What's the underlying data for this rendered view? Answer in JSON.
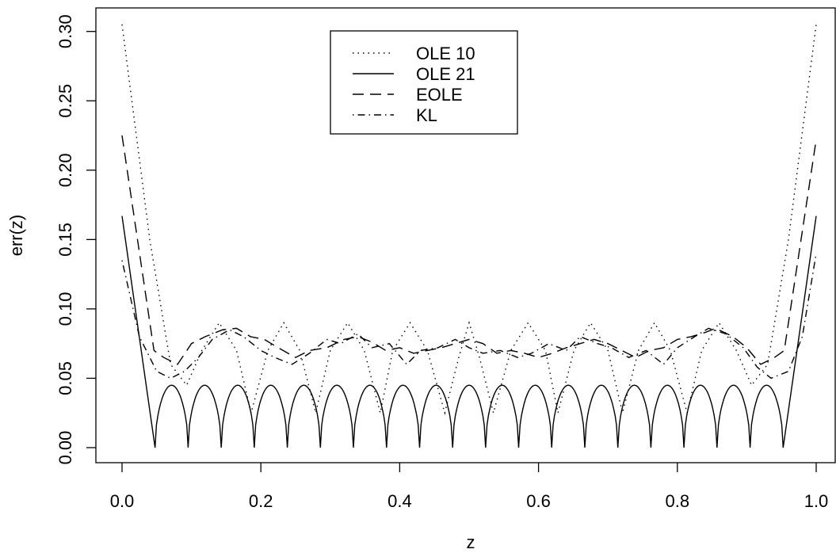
{
  "chart_data": {
    "type": "line",
    "title": "",
    "xlabel": "z",
    "ylabel": "err(z)",
    "xlim": [
      0.0,
      1.0
    ],
    "ylim": [
      0.0,
      0.3
    ],
    "x_ticks": [
      "0.0",
      "0.2",
      "0.4",
      "0.6",
      "0.8",
      "1.0"
    ],
    "y_ticks": [
      "0.00",
      "0.05",
      "0.10",
      "0.15",
      "0.20",
      "0.25",
      "0.30"
    ],
    "grid": false,
    "legend_position": "top-center",
    "series": [
      {
        "name": "OLE 10",
        "style": "dotted",
        "x": [
          0.0,
          0.04,
          0.07,
          0.093,
          0.115,
          0.14,
          0.165,
          0.186,
          0.21,
          0.233,
          0.256,
          0.279,
          0.3,
          0.325,
          0.349,
          0.372,
          0.39,
          0.415,
          0.44,
          0.465,
          0.485,
          0.5,
          0.515,
          0.535,
          0.56,
          0.585,
          0.61,
          0.628,
          0.651,
          0.675,
          0.7,
          0.721,
          0.744,
          0.767,
          0.79,
          0.814,
          0.835,
          0.86,
          0.885,
          0.907,
          0.93,
          0.96,
          1.0
        ],
        "y": [
          0.305,
          0.15,
          0.06,
          0.045,
          0.07,
          0.09,
          0.07,
          0.025,
          0.07,
          0.09,
          0.07,
          0.025,
          0.07,
          0.09,
          0.07,
          0.025,
          0.07,
          0.09,
          0.07,
          0.025,
          0.065,
          0.09,
          0.065,
          0.025,
          0.07,
          0.09,
          0.07,
          0.025,
          0.07,
          0.09,
          0.07,
          0.025,
          0.07,
          0.09,
          0.07,
          0.025,
          0.07,
          0.09,
          0.07,
          0.045,
          0.06,
          0.15,
          0.305
        ]
      },
      {
        "name": "OLE 21",
        "style": "solid",
        "nodes": [
          0.0,
          0.0476,
          0.0952,
          0.1429,
          0.1905,
          0.2381,
          0.2857,
          0.3333,
          0.381,
          0.4286,
          0.4762,
          0.5238,
          0.5714,
          0.619,
          0.6667,
          0.7143,
          0.7619,
          0.8095,
          0.8571,
          0.9048,
          0.9524,
          1.0
        ],
        "arch_peak": 0.045,
        "x": [
          0.0,
          0.0476,
          0.952,
          1.0
        ],
        "y": [
          0.167,
          0.0,
          0.0,
          0.167
        ]
      },
      {
        "name": "EOLE",
        "style": "dashed",
        "x": [
          0.0,
          0.046,
          0.06,
          0.08,
          0.1,
          0.12,
          0.145,
          0.165,
          0.185,
          0.205,
          0.225,
          0.25,
          0.27,
          0.295,
          0.32,
          0.34,
          0.36,
          0.38,
          0.4,
          0.42,
          0.44,
          0.46,
          0.48,
          0.5,
          0.52,
          0.54,
          0.56,
          0.58,
          0.6,
          0.62,
          0.64,
          0.66,
          0.68,
          0.7,
          0.72,
          0.74,
          0.76,
          0.78,
          0.8,
          0.82,
          0.84,
          0.855,
          0.88,
          0.9,
          0.92,
          0.94,
          0.954,
          1.0
        ],
        "y": [
          0.225,
          0.07,
          0.065,
          0.06,
          0.075,
          0.08,
          0.085,
          0.086,
          0.08,
          0.078,
          0.072,
          0.065,
          0.07,
          0.072,
          0.078,
          0.08,
          0.076,
          0.07,
          0.072,
          0.068,
          0.07,
          0.072,
          0.075,
          0.078,
          0.075,
          0.068,
          0.07,
          0.068,
          0.065,
          0.068,
          0.072,
          0.075,
          0.078,
          0.075,
          0.07,
          0.065,
          0.07,
          0.072,
          0.078,
          0.08,
          0.083,
          0.086,
          0.08,
          0.072,
          0.06,
          0.065,
          0.07,
          0.222
        ]
      },
      {
        "name": "KL",
        "style": "dotdash",
        "x": [
          0.0,
          0.025,
          0.05,
          0.07,
          0.09,
          0.11,
          0.13,
          0.155,
          0.175,
          0.2,
          0.22,
          0.245,
          0.27,
          0.295,
          0.315,
          0.34,
          0.36,
          0.385,
          0.41,
          0.43,
          0.455,
          0.48,
          0.5,
          0.52,
          0.545,
          0.57,
          0.59,
          0.615,
          0.64,
          0.66,
          0.685,
          0.705,
          0.73,
          0.755,
          0.78,
          0.8,
          0.825,
          0.845,
          0.87,
          0.895,
          0.915,
          0.935,
          0.96,
          0.98,
          1.0
        ],
        "y": [
          0.135,
          0.08,
          0.055,
          0.05,
          0.055,
          0.065,
          0.078,
          0.085,
          0.08,
          0.07,
          0.065,
          0.06,
          0.068,
          0.078,
          0.075,
          0.082,
          0.072,
          0.075,
          0.06,
          0.07,
          0.072,
          0.078,
          0.072,
          0.068,
          0.07,
          0.065,
          0.068,
          0.075,
          0.07,
          0.08,
          0.075,
          0.072,
          0.065,
          0.07,
          0.06,
          0.072,
          0.08,
          0.086,
          0.082,
          0.072,
          0.058,
          0.05,
          0.055,
          0.08,
          0.14
        ]
      }
    ]
  }
}
